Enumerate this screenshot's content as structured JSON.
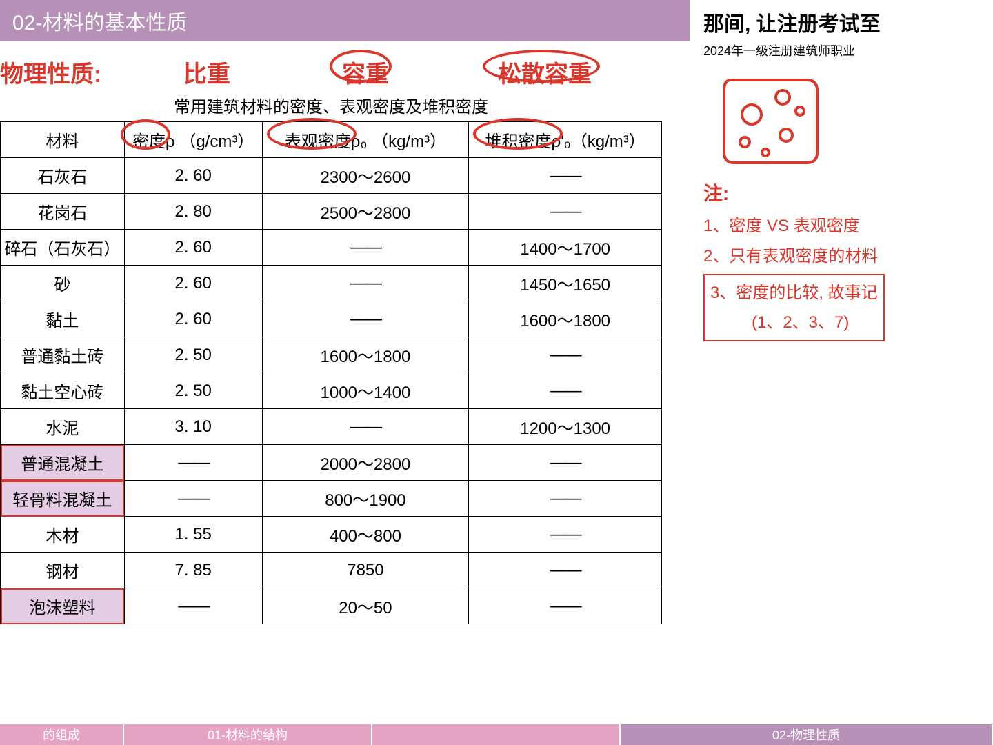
{
  "title": "02-材料的基本性质",
  "phys_label": "物理性质:",
  "col_heads": {
    "c1": "比重",
    "c2": "容重",
    "c3": "松散容重"
  },
  "caption": "常用建筑材料的密度、表观密度及堆积密度",
  "headers": {
    "h0": "材料",
    "h1_a": "密度",
    "h1_b": "ρ （g/cm³）",
    "h2_a": "表观密度",
    "h2_b": "ρ₀ （kg/m³）",
    "h3_a": "堆积密度",
    "h3_b": "ρ'₀（kg/m³）"
  },
  "rows": [
    {
      "m": "石灰石",
      "d": "2. 60",
      "a": "2300～2600",
      "b": "——",
      "hl": false
    },
    {
      "m": "花岗石",
      "d": "2. 80",
      "a": "2500～2800",
      "b": "——",
      "hl": false
    },
    {
      "m": "碎石（石灰石）",
      "d": "2. 60",
      "a": "——",
      "b": "1400～1700",
      "hl": false
    },
    {
      "m": "砂",
      "d": "2. 60",
      "a": "——",
      "b": "1450～1650",
      "hl": false
    },
    {
      "m": "黏土",
      "d": "2. 60",
      "a": "——",
      "b": "1600～1800",
      "hl": false
    },
    {
      "m": "普通黏土砖",
      "d": "2. 50",
      "a": "1600～1800",
      "b": "——",
      "hl": false
    },
    {
      "m": "黏土空心砖",
      "d": "2. 50",
      "a": "1000～1400",
      "b": "——",
      "hl": false
    },
    {
      "m": "水泥",
      "d": "3. 10",
      "a": "——",
      "b": "1200～1300",
      "hl": false
    },
    {
      "m": "普通混凝土",
      "d": "——",
      "a": "2000～2800",
      "b": "——",
      "hl": true
    },
    {
      "m": "轻骨料混凝土",
      "d": "——",
      "a": "800～1900",
      "b": "——",
      "hl": true
    },
    {
      "m": "木材",
      "d": "1. 55",
      "a": "400～800",
      "b": "——",
      "hl": false
    },
    {
      "m": "钢材",
      "d": "7. 85",
      "a": "7850",
      "b": "——",
      "hl": false
    },
    {
      "m": "泡沫塑料",
      "d": "——",
      "a": "20～50",
      "b": "——",
      "hl": true
    }
  ],
  "right": {
    "slogan": "那间, 让注册考试至",
    "sub": "2024年一级注册建筑师职业",
    "note_head": "注:",
    "n1": "1、密度 VS 表观密度 ",
    "n2": "2、只有表观密度的材料",
    "n3a": "3、密度的比较, 故事记",
    "n3b": "(1、2、3、7)"
  },
  "footer": {
    "t1": "的组成",
    "t2": "01-材料的结构",
    "t3": "",
    "t4": "02-物理性质"
  },
  "colors": {
    "purple_bar": "#b690b6",
    "red": "#d9372b",
    "cell_hl": "#e6cde6",
    "pink_tab": "#e6a4c4"
  }
}
